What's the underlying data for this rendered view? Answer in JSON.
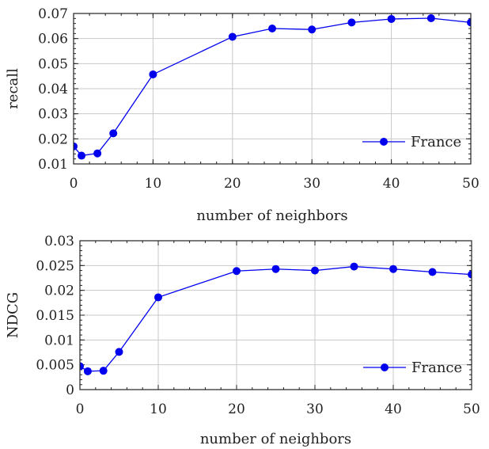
{
  "colors": {
    "series": "#0000ee",
    "grid": "#c8c8c8",
    "axis": "#222222"
  },
  "chart_data": [
    {
      "type": "line",
      "xlabel": "number of neighbors",
      "ylabel": "recall",
      "xlim": [
        0,
        50
      ],
      "ylim": [
        0.01,
        0.07
      ],
      "xticks": [
        0,
        10,
        20,
        30,
        40,
        50
      ],
      "yticks": [
        0.01,
        0.02,
        0.03,
        0.04,
        0.05,
        0.06,
        0.07
      ],
      "xtick_labels": [
        "0",
        "10",
        "20",
        "30",
        "40",
        "50"
      ],
      "ytick_labels": [
        "0.01",
        "0.02",
        "0.03",
        "0.04",
        "0.05",
        "0.06",
        "0.07"
      ],
      "grid": true,
      "legend_position": "bottom-right",
      "series": [
        {
          "name": "France",
          "x": [
            0,
            1,
            3,
            5,
            10,
            20,
            25,
            30,
            35,
            40,
            45,
            50
          ],
          "y": [
            0.017,
            0.0133,
            0.0142,
            0.0222,
            0.0457,
            0.0607,
            0.064,
            0.0636,
            0.0664,
            0.0678,
            0.0681,
            0.0664
          ]
        }
      ]
    },
    {
      "type": "line",
      "xlabel": "number of neighbors",
      "ylabel": "NDCG",
      "xlim": [
        0,
        50
      ],
      "ylim": [
        0,
        0.03
      ],
      "xticks": [
        0,
        10,
        20,
        30,
        40,
        50
      ],
      "yticks": [
        0,
        0.005,
        0.01,
        0.015,
        0.02,
        0.025,
        0.03
      ],
      "xtick_labels": [
        "0",
        "10",
        "20",
        "30",
        "40",
        "50"
      ],
      "ytick_labels": [
        "0",
        "0.005",
        "0.01",
        "0.015",
        "0.02",
        "0.025",
        "0.03"
      ],
      "grid": true,
      "legend_position": "bottom-right",
      "series": [
        {
          "name": "France",
          "x": [
            0,
            1,
            3,
            5,
            10,
            20,
            25,
            30,
            35,
            40,
            45,
            50
          ],
          "y": [
            0.0047,
            0.0037,
            0.0038,
            0.0076,
            0.0186,
            0.0239,
            0.0243,
            0.024,
            0.0248,
            0.0243,
            0.0237,
            0.0232
          ]
        }
      ]
    }
  ]
}
